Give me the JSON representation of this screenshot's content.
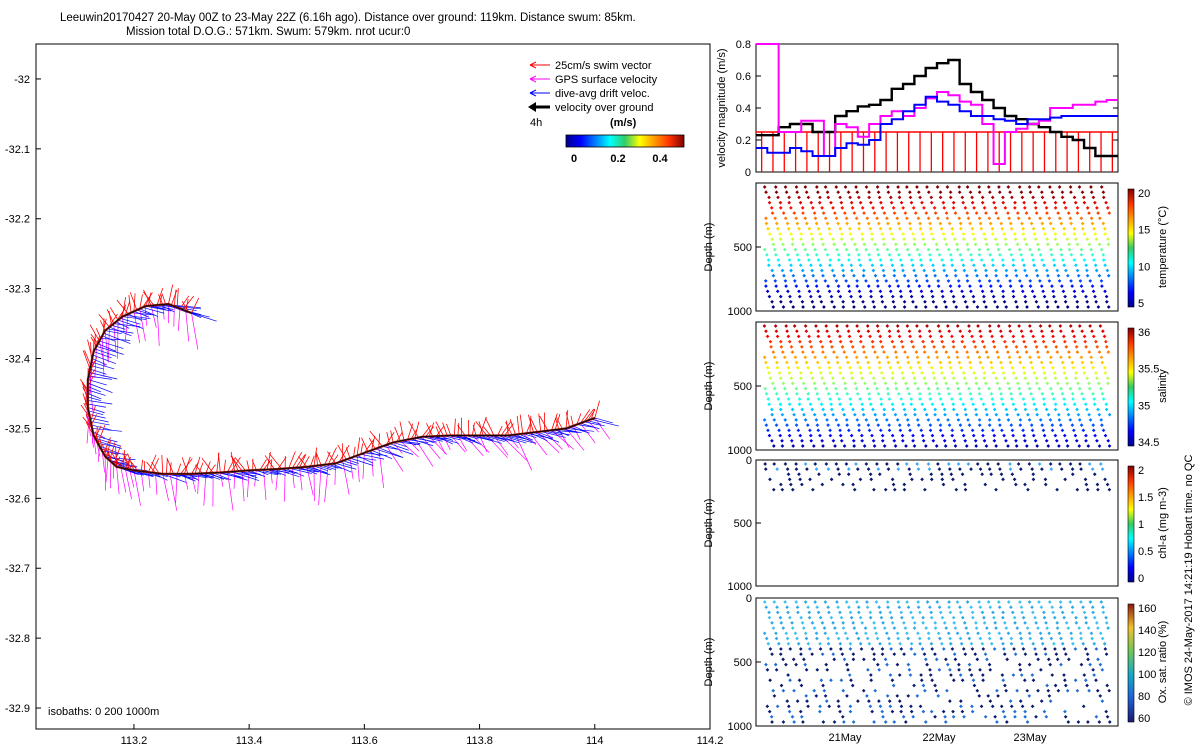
{
  "header": {
    "line1": "Leeuwin20170427 20-May 00Z to 23-May 22Z (6.16h ago). Distance over ground: 119km. Distance swum: 85km.",
    "line2": "Mission total D.O.G.: 571km. Swum: 579km. nrot ucur:0"
  },
  "map": {
    "x_ticks": [
      "113.2",
      "113.4",
      "113.6",
      "113.8",
      "114",
      "114.2"
    ],
    "y_ticks": [
      "-32",
      "-32.1",
      "-32.2",
      "-32.3",
      "-32.4",
      "-32.5",
      "-32.6",
      "-32.7",
      "-32.8",
      "-32.9"
    ],
    "isobaths_label": "isobaths: 0   200  1000m",
    "legend": {
      "items": [
        {
          "label": "25cm/s swim vector",
          "color": "#ff0000"
        },
        {
          "label": "GPS surface velocity",
          "color": "#ff00ff"
        },
        {
          "label": "dive-avg drift veloc.",
          "color": "#0000ff"
        },
        {
          "label": "velocity over ground",
          "color": "#000000"
        }
      ],
      "time_label": "4h",
      "colorbar_title": "(m/s)",
      "colorbar_ticks": [
        "0",
        "0.2",
        "0.4"
      ]
    }
  },
  "velocity_panel": {
    "ylabel": "velocity magnitude (m/s)",
    "y_ticks": [
      "0",
      "0.2",
      "0.4",
      "0.6",
      "0.8"
    ],
    "swim_value": 0.25,
    "colors": {
      "ground": "#000000",
      "gps": "#ff00ff",
      "drift": "#0000ff",
      "swim": "#ff0000"
    }
  },
  "profile_panels": [
    {
      "ylabel": "Depth (m)",
      "cbar_label": "temperature (°C)",
      "cbar_ticks": [
        "20",
        "15",
        "10",
        "5"
      ],
      "y_ticks": [
        "500",
        "1000"
      ]
    },
    {
      "ylabel": "Depth (m)",
      "cbar_label": "salinity",
      "cbar_ticks": [
        "36",
        "35.5",
        "35",
        "34.5"
      ],
      "y_ticks": [
        "500",
        "1000"
      ]
    },
    {
      "ylabel": "Depth (m)",
      "cbar_label": "chl-a (mg m-3)",
      "cbar_ticks": [
        "2",
        "1.5",
        "1",
        "0.5",
        "0"
      ],
      "y_ticks": [
        "0",
        "500",
        "1000"
      ]
    },
    {
      "ylabel": "Depth (m)",
      "cbar_label": "Ox. sat. ratio (%)",
      "cbar_ticks": [
        "160",
        "140",
        "120",
        "100",
        "80",
        "60"
      ],
      "y_ticks": [
        "0",
        "500",
        "1000"
      ]
    }
  ],
  "time_ticks": [
    "21May",
    "22May",
    "23May"
  ],
  "footer_vertical": "© IMOS 24-May-2017 14:21:19 Hobart time. no QC",
  "chart_data": [
    {
      "type": "line",
      "title": "Leeuwin20170427 20-May 00Z to 23-May 22Z (6.16h ago). Distance over ground: 119km. Distance swum: 85km.",
      "xlabel": "",
      "ylabel": "",
      "xlim": [
        113.03,
        114.2
      ],
      "ylim": [
        -32.93,
        -31.95
      ],
      "series": [
        {
          "name": "velocity over ground",
          "x": [
            114.0,
            113.95,
            113.9,
            113.85,
            113.8,
            113.75,
            113.7,
            113.65,
            113.6,
            113.55,
            113.5,
            113.45,
            113.4,
            113.35,
            113.3,
            113.25,
            113.2,
            113.17,
            113.15,
            113.13,
            113.12,
            113.12,
            113.13,
            113.15,
            113.18,
            113.22,
            113.26,
            113.3
          ],
          "y": [
            -32.485,
            -32.5,
            -32.505,
            -32.51,
            -32.51,
            -32.51,
            -32.512,
            -32.52,
            -32.535,
            -32.55,
            -32.555,
            -32.558,
            -32.56,
            -32.563,
            -32.565,
            -32.565,
            -32.56,
            -32.555,
            -32.54,
            -32.51,
            -32.47,
            -32.43,
            -32.39,
            -32.36,
            -32.34,
            -32.325,
            -32.322,
            -32.335
          ]
        }
      ]
    },
    {
      "type": "line",
      "ylabel": "velocity magnitude (m/s)",
      "ylim": [
        0,
        0.8
      ],
      "x": [
        0,
        1,
        2,
        3,
        4,
        5,
        6,
        7,
        8,
        9,
        10,
        11,
        12,
        13,
        14,
        15,
        16,
        17,
        18,
        19,
        20,
        21,
        22,
        23,
        24,
        25,
        26,
        27,
        28,
        29,
        30,
        31
      ],
      "series": [
        {
          "name": "velocity over ground",
          "values": [
            0.23,
            0.23,
            0.28,
            0.3,
            0.3,
            0.25,
            0.25,
            0.35,
            0.38,
            0.41,
            0.42,
            0.45,
            0.52,
            0.55,
            0.6,
            0.65,
            0.68,
            0.7,
            0.55,
            0.5,
            0.45,
            0.4,
            0.35,
            0.33,
            0.3,
            0.28,
            0.25,
            0.22,
            0.2,
            0.15,
            0.1,
            0.1
          ]
        },
        {
          "name": "GPS surface velocity",
          "values": [
            0.8,
            0.8,
            0.25,
            0.25,
            0.32,
            0.32,
            0.1,
            0.3,
            0.28,
            0.22,
            0.3,
            0.35,
            0.38,
            0.35,
            0.4,
            0.46,
            0.5,
            0.48,
            0.44,
            0.42,
            0.3,
            0.05,
            0.25,
            0.27,
            0.3,
            0.32,
            0.4,
            0.4,
            0.42,
            0.42,
            0.44,
            0.45
          ]
        },
        {
          "name": "dive-avg drift veloc.",
          "values": [
            0.15,
            0.12,
            0.12,
            0.15,
            0.13,
            0.1,
            0.1,
            0.15,
            0.18,
            0.17,
            0.2,
            0.3,
            0.33,
            0.38,
            0.42,
            0.47,
            0.44,
            0.42,
            0.38,
            0.35,
            0.35,
            0.33,
            0.32,
            0.3,
            0.33,
            0.33,
            0.34,
            0.35,
            0.35,
            0.35,
            0.35,
            0.35
          ]
        },
        {
          "name": "25cm/s swim vector",
          "values": [
            0.25,
            0.25,
            0.25,
            0.25,
            0.25,
            0.25,
            0.25,
            0.25,
            0.25,
            0.25,
            0.25,
            0.25,
            0.25,
            0.25,
            0.25,
            0.25,
            0.25,
            0.25,
            0.25,
            0.25,
            0.25,
            0.25,
            0.25,
            0.25,
            0.25,
            0.25,
            0.25,
            0.25,
            0.25,
            0.25,
            0.25,
            0.25
          ]
        }
      ]
    }
  ]
}
